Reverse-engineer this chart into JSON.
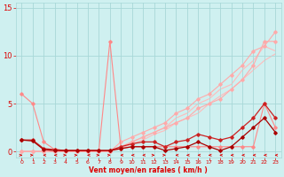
{
  "xlabel": "Vent moyen/en rafales ( km/h )",
  "background_color": "#cff0f0",
  "grid_color": "#a8d8d8",
  "text_color": "#dd0000",
  "xlim": [
    -0.5,
    23.5
  ],
  "ylim": [
    -0.6,
    15.5
  ],
  "yticks": [
    0,
    5,
    10,
    15
  ],
  "xticks": [
    0,
    1,
    2,
    3,
    4,
    5,
    6,
    7,
    8,
    9,
    10,
    11,
    12,
    13,
    14,
    15,
    16,
    17,
    18,
    19,
    20,
    21,
    22,
    23
  ],
  "lines": [
    {
      "x": [
        0,
        1,
        2,
        3,
        4,
        5,
        6,
        7,
        8,
        9,
        10,
        11,
        12,
        13,
        14,
        15,
        16,
        17,
        18,
        19,
        20,
        21,
        22,
        23
      ],
      "y": [
        6.0,
        5.0,
        1.0,
        0.2,
        0.1,
        0.1,
        0.1,
        0.1,
        11.5,
        0.3,
        0.5,
        0.5,
        0.5,
        0.5,
        0.5,
        0.5,
        0.5,
        0.5,
        0.5,
        0.5,
        0.5,
        0.5,
        5.0,
        2.5
      ],
      "color": "#ff8888",
      "lw": 0.8,
      "marker": "D",
      "ms": 1.8,
      "zorder": 3
    },
    {
      "x": [
        0,
        1,
        2,
        3,
        4,
        5,
        6,
        7,
        8,
        9,
        10,
        11,
        12,
        13,
        14,
        15,
        16,
        17,
        18,
        19,
        20,
        21,
        22,
        23
      ],
      "y": [
        0.0,
        0.0,
        0.0,
        0.0,
        0.0,
        0.0,
        0.0,
        0.0,
        0.0,
        0.5,
        1.0,
        1.5,
        2.0,
        2.5,
        3.0,
        3.5,
        4.5,
        5.0,
        5.5,
        6.5,
        7.5,
        9.0,
        11.5,
        11.5
      ],
      "color": "#ffaaaa",
      "lw": 0.8,
      "marker": "D",
      "ms": 1.8,
      "zorder": 2
    },
    {
      "x": [
        0,
        1,
        2,
        3,
        4,
        5,
        6,
        7,
        8,
        9,
        10,
        11,
        12,
        13,
        14,
        15,
        16,
        17,
        18,
        19,
        20,
        21,
        22,
        23
      ],
      "y": [
        0.0,
        0.0,
        0.0,
        0.0,
        0.0,
        0.0,
        0.0,
        0.0,
        0.0,
        1.0,
        1.5,
        2.0,
        2.5,
        3.0,
        4.0,
        4.5,
        5.5,
        6.0,
        7.0,
        8.0,
        9.0,
        10.5,
        11.0,
        12.5
      ],
      "color": "#ffaaaa",
      "lw": 0.8,
      "marker": "D",
      "ms": 1.8,
      "zorder": 2
    },
    {
      "x": [
        0,
        1,
        2,
        3,
        4,
        5,
        6,
        7,
        8,
        9,
        10,
        11,
        12,
        13,
        14,
        15,
        16,
        17,
        18,
        19,
        20,
        21,
        22,
        23
      ],
      "y": [
        0.0,
        0.0,
        0.0,
        0.0,
        0.0,
        0.0,
        0.0,
        0.0,
        0.0,
        0.5,
        1.0,
        1.5,
        2.0,
        2.5,
        3.5,
        4.0,
        5.0,
        5.5,
        6.5,
        7.0,
        8.5,
        9.5,
        11.0,
        10.5
      ],
      "color": "#ffbbbb",
      "lw": 0.8,
      "marker": null,
      "ms": 0,
      "zorder": 1
    },
    {
      "x": [
        0,
        1,
        2,
        3,
        4,
        5,
        6,
        7,
        8,
        9,
        10,
        11,
        12,
        13,
        14,
        15,
        16,
        17,
        18,
        19,
        20,
        21,
        22,
        23
      ],
      "y": [
        0.0,
        0.0,
        0.0,
        0.0,
        0.0,
        0.0,
        0.0,
        0.0,
        0.0,
        0.3,
        0.8,
        1.2,
        1.8,
        2.2,
        3.0,
        3.5,
        4.0,
        5.0,
        5.8,
        6.5,
        7.5,
        8.5,
        9.5,
        10.2
      ],
      "color": "#ffbbbb",
      "lw": 0.8,
      "marker": null,
      "ms": 0,
      "zorder": 1
    },
    {
      "x": [
        0,
        1,
        2,
        3,
        4,
        5,
        6,
        7,
        8,
        9,
        10,
        11,
        12,
        13,
        14,
        15,
        16,
        17,
        18,
        19,
        20,
        21,
        22,
        23
      ],
      "y": [
        1.2,
        1.2,
        0.3,
        0.2,
        0.1,
        0.1,
        0.1,
        0.1,
        0.1,
        0.5,
        0.8,
        1.0,
        1.0,
        0.5,
        1.0,
        1.2,
        1.8,
        1.5,
        1.2,
        1.5,
        2.5,
        3.5,
        5.0,
        3.5
      ],
      "color": "#cc2222",
      "lw": 0.9,
      "marker": "D",
      "ms": 1.8,
      "zorder": 4
    },
    {
      "x": [
        0,
        1,
        2,
        3,
        4,
        5,
        6,
        7,
        8,
        9,
        10,
        11,
        12,
        13,
        14,
        15,
        16,
        17,
        18,
        19,
        20,
        21,
        22,
        23
      ],
      "y": [
        1.2,
        1.1,
        0.2,
        0.1,
        0.1,
        0.1,
        0.1,
        0.1,
        0.1,
        0.3,
        0.5,
        0.5,
        0.5,
        0.1,
        0.3,
        0.5,
        1.0,
        0.5,
        0.1,
        0.5,
        1.5,
        2.5,
        3.5,
        2.0
      ],
      "color": "#aa0000",
      "lw": 0.9,
      "marker": "D",
      "ms": 1.8,
      "zorder": 4
    }
  ]
}
